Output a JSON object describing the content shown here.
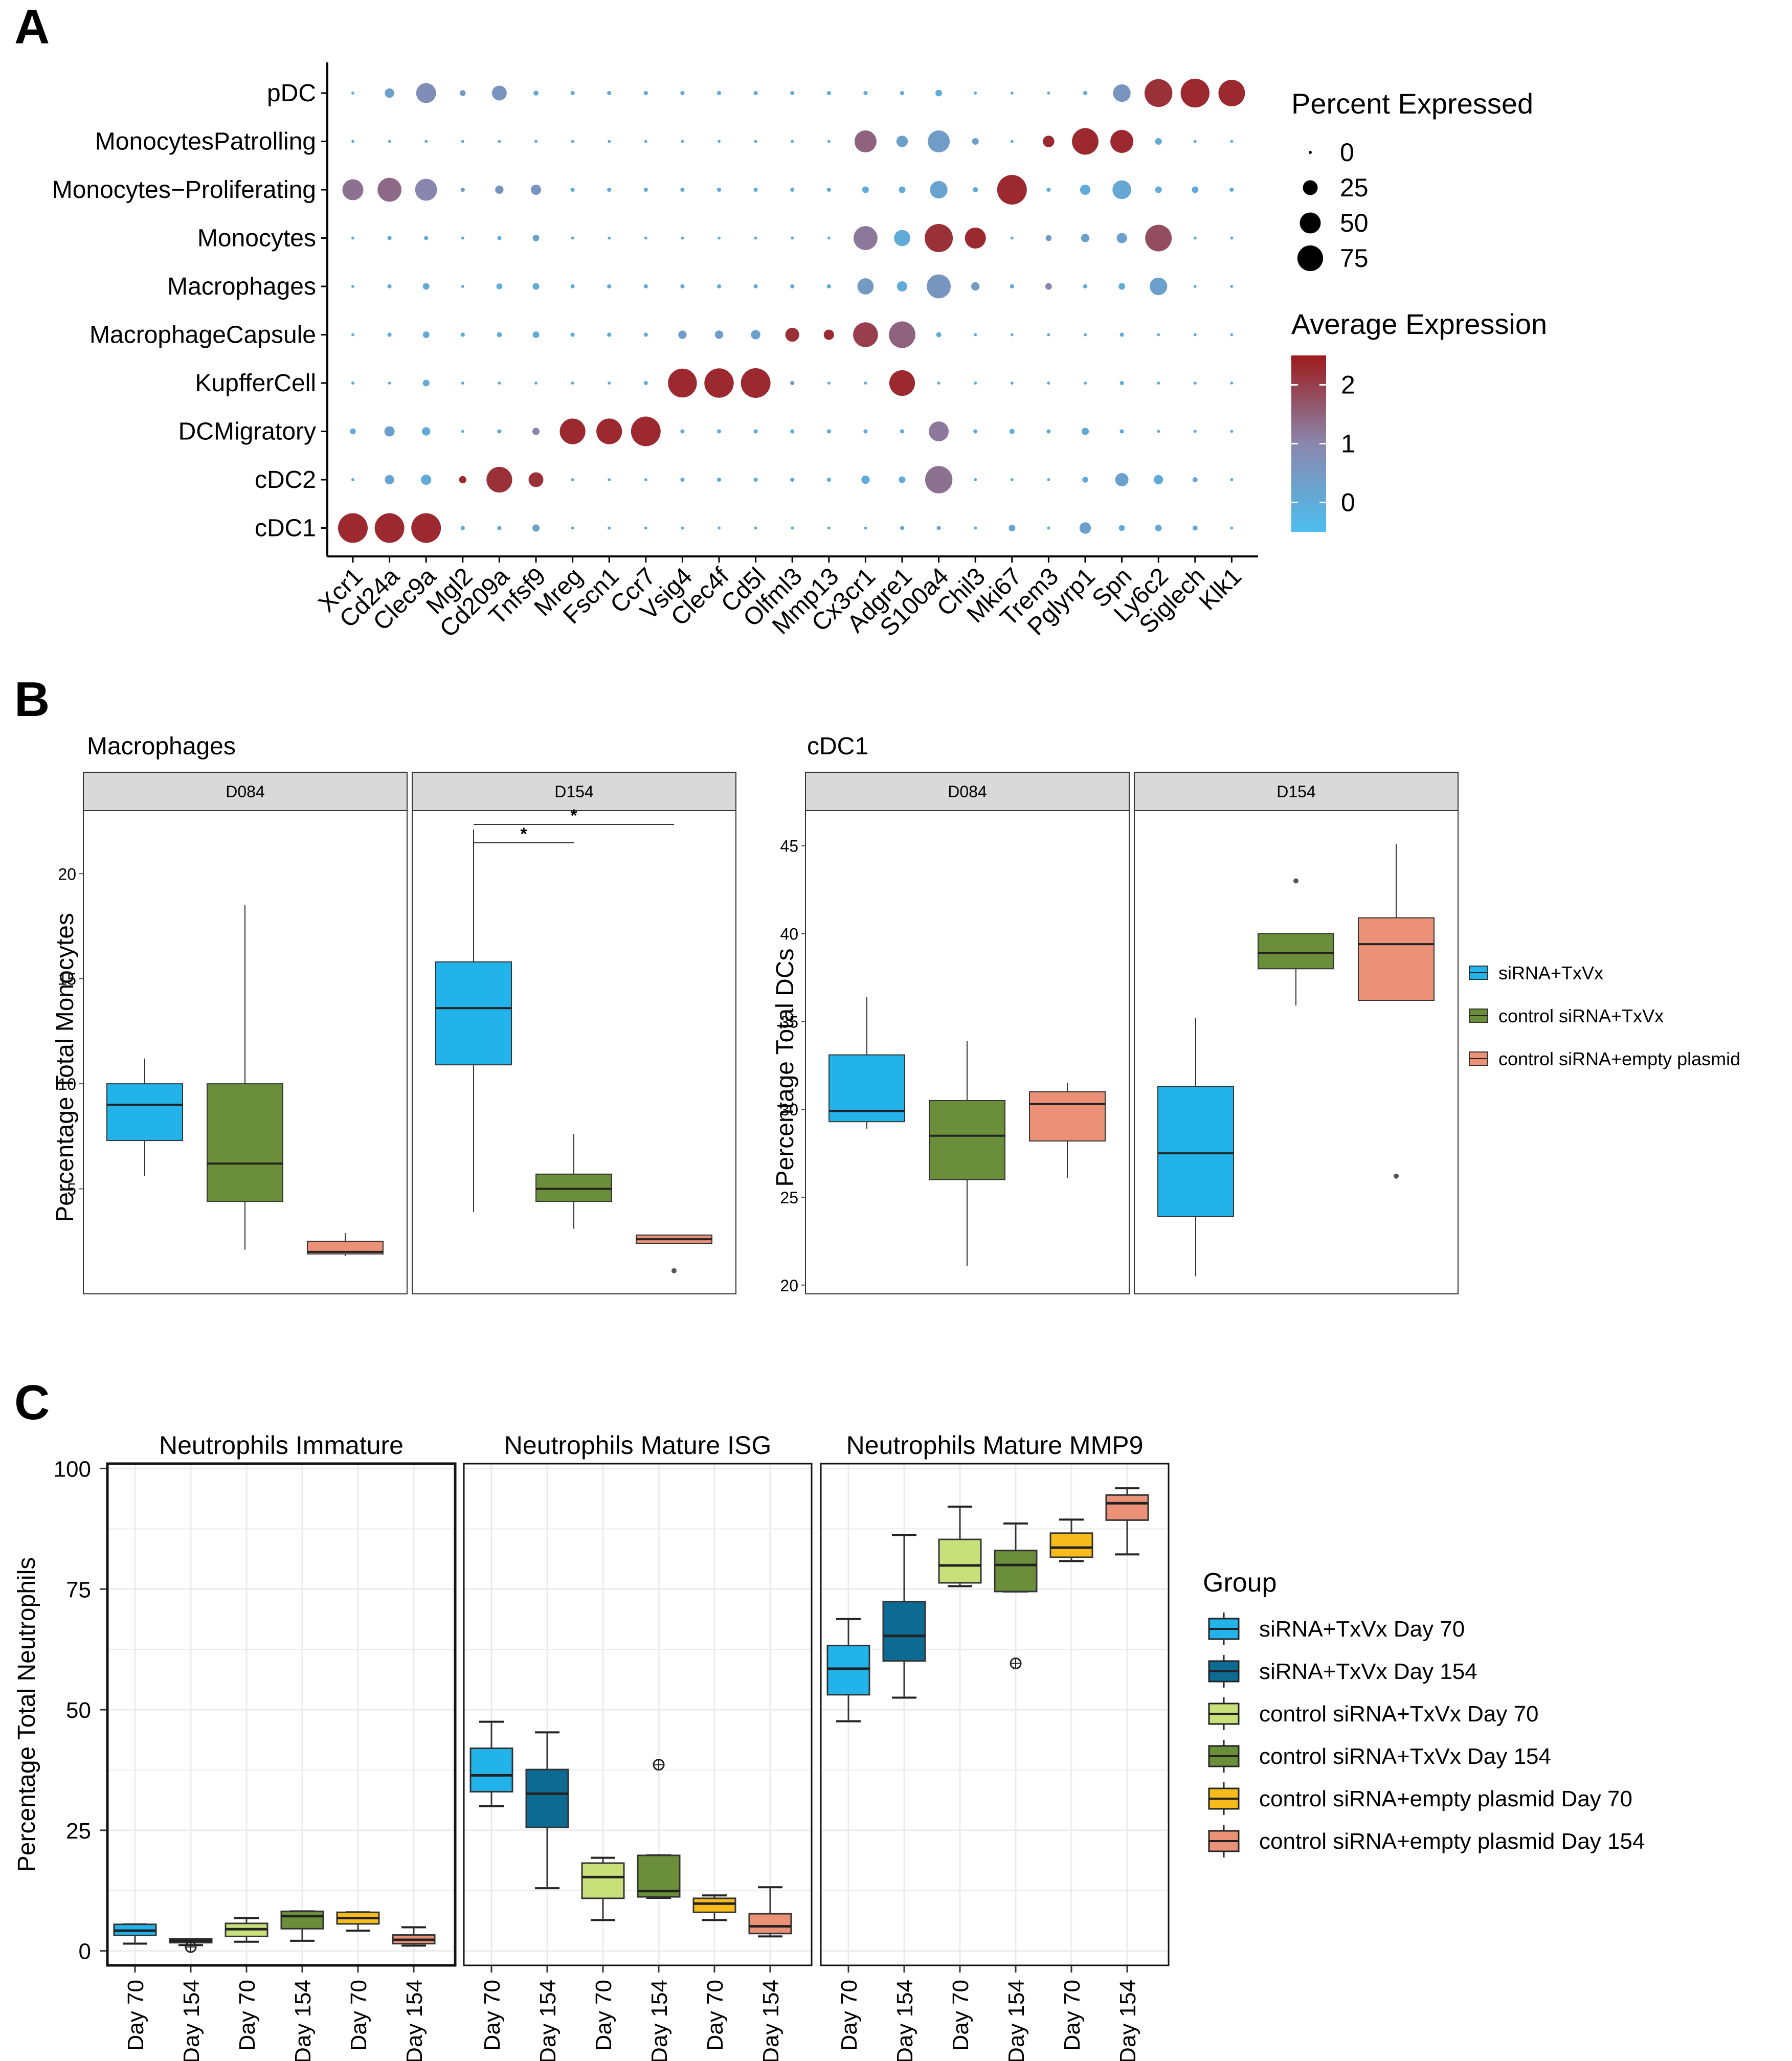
{
  "panel_labels": {
    "a": "A",
    "b": "B",
    "c": "C"
  },
  "colors": {
    "blue": "#22b3ea",
    "dark_blue": "#0d6b93",
    "light_green": "#c8e07a",
    "green": "#6b8e3a",
    "yellow": "#f7bb1b",
    "salmon": "#ea9178",
    "red": "#9e1b1b",
    "grey_strip": "#d9d9d9"
  },
  "chart_data": [
    {
      "id": "A",
      "type": "dotplot",
      "rows": [
        "pDC",
        "MonocytesPatrolling",
        "Monocytes−Proliferating",
        "Monocytes",
        "Macrophages",
        "MacrophageCapsule",
        "KupfferCell",
        "DCMigratory",
        "cDC2",
        "cDC1"
      ],
      "genes": [
        "Xcr1",
        "Cd24a",
        "Clec9a",
        "Mgl2",
        "Cd209a",
        "Tnfsf9",
        "Mreg",
        "Fscn1",
        "Ccr7",
        "Vsig4",
        "Clec4f",
        "Cd5l",
        "Olfml3",
        "Mmp13",
        "Cx3cr1",
        "Adgre1",
        "S100a4",
        "Chil3",
        "Mki67",
        "Trem3",
        "Pglyrp1",
        "Spn",
        "Ly6c2",
        "Siglech",
        "Klk1"
      ],
      "percent": [
        [
          1,
          10,
          45,
          4,
          25,
          3,
          2,
          2,
          2,
          2,
          2,
          2,
          2,
          2,
          2,
          2,
          5,
          1,
          1,
          1,
          2,
          35,
          88,
          95,
          80
        ],
        [
          1,
          1,
          1,
          1,
          1,
          1,
          1,
          1,
          1,
          1,
          1,
          1,
          1,
          1,
          55,
          15,
          55,
          5,
          1,
          15,
          80,
          60,
          5,
          1,
          1
        ],
        [
          50,
          65,
          55,
          2,
          8,
          12,
          2,
          2,
          2,
          2,
          2,
          2,
          2,
          2,
          5,
          5,
          35,
          3,
          100,
          2,
          12,
          40,
          5,
          5,
          2
        ],
        [
          1,
          2,
          2,
          1,
          2,
          5,
          1,
          1,
          1,
          1,
          1,
          1,
          1,
          1,
          65,
          30,
          90,
          50,
          1,
          4,
          8,
          12,
          80,
          1,
          1
        ],
        [
          1,
          2,
          5,
          1,
          4,
          5,
          2,
          2,
          2,
          2,
          2,
          2,
          2,
          2,
          30,
          12,
          65,
          8,
          2,
          5,
          2,
          5,
          35,
          1,
          1
        ],
        [
          1,
          2,
          5,
          2,
          3,
          5,
          2,
          2,
          2,
          8,
          8,
          10,
          22,
          12,
          70,
          80,
          3,
          1,
          1,
          1,
          1,
          2,
          1,
          1,
          1
        ],
        [
          1,
          1,
          5,
          1,
          1,
          1,
          1,
          1,
          2,
          95,
          98,
          100,
          2,
          1,
          1,
          75,
          1,
          1,
          1,
          1,
          1,
          2,
          1,
          1,
          1
        ],
        [
          4,
          12,
          8,
          1,
          2,
          6,
          75,
          75,
          100,
          2,
          2,
          2,
          2,
          2,
          2,
          2,
          45,
          2,
          3,
          2,
          6,
          2,
          1,
          1,
          1
        ],
        [
          1,
          10,
          12,
          6,
          75,
          25,
          1,
          1,
          1,
          2,
          2,
          2,
          2,
          2,
          8,
          5,
          85,
          1,
          1,
          1,
          4,
          20,
          10,
          3,
          1
        ],
        [
          100,
          100,
          100,
          2,
          2,
          6,
          1,
          1,
          1,
          1,
          1,
          1,
          1,
          1,
          1,
          2,
          2,
          1,
          5,
          1,
          15,
          4,
          5,
          3,
          1
        ]
      ],
      "avg_expression": [
        [
          0,
          0.3,
          0.8,
          0.5,
          0.6,
          0,
          0,
          0,
          0,
          0,
          0,
          0,
          0,
          0,
          0,
          0,
          0,
          0,
          0,
          0,
          0,
          0.6,
          2.2,
          2.3,
          2.3
        ],
        [
          0,
          0,
          0,
          0,
          0,
          0,
          0,
          0,
          0,
          0,
          0,
          0,
          0,
          0,
          1.5,
          0.3,
          0.4,
          0.3,
          0,
          2.3,
          2.3,
          2.3,
          0,
          0,
          0
        ],
        [
          1.3,
          1.4,
          1.0,
          0.4,
          0.6,
          0.6,
          0,
          0,
          0,
          0,
          0,
          0,
          0,
          0,
          0,
          0,
          0.2,
          0,
          2.3,
          0,
          0,
          0.1,
          0,
          0,
          0
        ],
        [
          0,
          0,
          0,
          0,
          0,
          0.3,
          0,
          0,
          0,
          0,
          0,
          0,
          0,
          0,
          1.2,
          0,
          2.2,
          2.3,
          0,
          0.5,
          0.3,
          0.3,
          1.8,
          0,
          0
        ],
        [
          0,
          0,
          0,
          0,
          0,
          0,
          0,
          0,
          0,
          0,
          0,
          0,
          0,
          0,
          0.5,
          0,
          0.6,
          0.5,
          0,
          1.0,
          0,
          0,
          0.3,
          0,
          0
        ],
        [
          0,
          0,
          0,
          0,
          0,
          0,
          0,
          0,
          0,
          0.4,
          0.4,
          0.3,
          2.2,
          2.3,
          2.0,
          1.5,
          0,
          0,
          0,
          0,
          0,
          0,
          0,
          0,
          0
        ],
        [
          0,
          0,
          0,
          0,
          0,
          0,
          0,
          0,
          0,
          2.3,
          2.3,
          2.3,
          0.5,
          0,
          0,
          2.3,
          0,
          0,
          0,
          0,
          0,
          0,
          0,
          0,
          0
        ],
        [
          0,
          0.3,
          0,
          0,
          0,
          1.0,
          2.3,
          2.3,
          2.3,
          0,
          0,
          0,
          0,
          0,
          0,
          0,
          1.2,
          0,
          0,
          0,
          0.1,
          0,
          0,
          0,
          0
        ],
        [
          0,
          0.2,
          0,
          2.3,
          2.2,
          2.2,
          0,
          0,
          0,
          0,
          0,
          0,
          0,
          0,
          0,
          0,
          1.3,
          0,
          0,
          0,
          0,
          0.3,
          0,
          0,
          0
        ],
        [
          2.3,
          2.3,
          2.3,
          0,
          0,
          0.3,
          0,
          0,
          0,
          0,
          0,
          0,
          0,
          0,
          0,
          0,
          0,
          0,
          0.2,
          0,
          0.3,
          0,
          0,
          0,
          0
        ]
      ],
      "legend": {
        "size_title": "Percent Expressed",
        "size_breaks": [
          0,
          25,
          50,
          75
        ],
        "size_labels": [
          "0",
          "25",
          "50",
          "75"
        ],
        "color_title": "Average Expression",
        "color_breaks": [
          "2",
          "1",
          "0"
        ],
        "color_range": [
          -0.5,
          2.5
        ]
      }
    },
    {
      "id": "B-macrophages",
      "type": "boxplot",
      "title": "Macrophages",
      "ylabel": "Percentage Total Monocytes",
      "ylim": [
        0,
        23
      ],
      "yticks": [
        5,
        10,
        15,
        20
      ],
      "facets": [
        "D084",
        "D154"
      ],
      "boxes": [
        [
          {
            "group": "siRNA+TxVx",
            "min": 5.6,
            "q1": 7.3,
            "median": 9.0,
            "q3": 10.0,
            "max": 11.2,
            "outliers": []
          },
          {
            "group": "control siRNA+TxVx",
            "min": 2.1,
            "q1": 4.4,
            "median": 6.2,
            "q3": 10.0,
            "max": 18.5,
            "outliers": []
          },
          {
            "group": "control siRNA+empty plasmid",
            "min": 1.8,
            "q1": 1.9,
            "median": 2.0,
            "q3": 2.5,
            "max": 2.9,
            "outliers": []
          }
        ],
        [
          {
            "group": "siRNA+TxVx",
            "min": 3.9,
            "q1": 10.9,
            "median": 13.6,
            "q3": 15.8,
            "max": 22.1,
            "outliers": []
          },
          {
            "group": "control siRNA+TxVx",
            "min": 3.1,
            "q1": 4.4,
            "median": 5.0,
            "q3": 5.7,
            "max": 7.6,
            "outliers": []
          },
          {
            "group": "control siRNA+empty plasmid",
            "min": 2.4,
            "q1": 2.4,
            "median": 2.6,
            "q3": 2.8,
            "max": 2.8,
            "outliers": [
              1.1
            ]
          }
        ]
      ],
      "significance": [
        {
          "facet": 1,
          "from": 0,
          "to": 1,
          "label": "*"
        },
        {
          "facet": 1,
          "from": 0,
          "to": 2,
          "label": "*"
        }
      ]
    },
    {
      "id": "B-cdc1",
      "type": "boxplot",
      "title": "cDC1",
      "ylabel": "Percentage Total DCs",
      "ylim": [
        19.5,
        47
      ],
      "yticks": [
        20,
        25,
        30,
        35,
        40,
        45
      ],
      "facets": [
        "D084",
        "D154"
      ],
      "boxes": [
        [
          {
            "group": "siRNA+TxVx",
            "min": 28.9,
            "q1": 29.3,
            "median": 29.9,
            "q3": 33.1,
            "max": 36.4,
            "outliers": []
          },
          {
            "group": "control siRNA+TxVx",
            "min": 21.1,
            "q1": 26.0,
            "median": 28.5,
            "q3": 30.5,
            "max": 33.9,
            "outliers": []
          },
          {
            "group": "control siRNA+empty plasmid",
            "min": 26.1,
            "q1": 28.2,
            "median": 30.3,
            "q3": 31.0,
            "max": 31.5,
            "outliers": []
          }
        ],
        [
          {
            "group": "siRNA+TxVx",
            "min": 20.5,
            "q1": 23.9,
            "median": 27.5,
            "q3": 31.3,
            "max": 35.2,
            "outliers": []
          },
          {
            "group": "control siRNA+TxVx",
            "min": 35.9,
            "q1": 38.0,
            "median": 38.9,
            "q3": 40.0,
            "max": 40.0,
            "outliers": [
              43.0
            ]
          },
          {
            "group": "control siRNA+empty plasmid",
            "min": 36.2,
            "q1": 36.2,
            "median": 39.4,
            "q3": 40.9,
            "max": 45.1,
            "outliers": [
              26.2
            ]
          }
        ]
      ],
      "legend": [
        "siRNA+TxVx",
        "control siRNA+TxVx",
        "control siRNA+empty plasmid"
      ]
    },
    {
      "id": "C",
      "type": "boxplot",
      "ylabel": "Percentage Total Neutrophils",
      "ylim": [
        -3,
        101
      ],
      "yticks": [
        0,
        25,
        50,
        75,
        100
      ],
      "categories": [
        "Day 70",
        "Day 154",
        "Day 70",
        "Day 154",
        "Day 70",
        "Day 154"
      ],
      "facets": [
        "Neutrophils Immature",
        "Neutrophils Mature ISG",
        "Neutrophils Mature MMP9"
      ],
      "boxes": [
        [
          {
            "min": 1.5,
            "q1": 3.2,
            "median": 4.2,
            "q3": 5.5,
            "max": 5.5,
            "outliers": []
          },
          {
            "min": 1.2,
            "q1": 1.7,
            "median": 2.1,
            "q3": 2.5,
            "max": 2.5,
            "outliers": [
              0.8
            ]
          },
          {
            "min": 1.9,
            "q1": 3.0,
            "median": 4.5,
            "q3": 5.7,
            "max": 6.8,
            "outliers": []
          },
          {
            "min": 2.1,
            "q1": 4.6,
            "median": 7.2,
            "q3": 8.2,
            "max": 8.2,
            "outliers": []
          },
          {
            "min": 4.2,
            "q1": 5.6,
            "median": 6.8,
            "q3": 8.0,
            "max": 8.0,
            "outliers": []
          },
          {
            "min": 1.1,
            "q1": 1.5,
            "median": 2.3,
            "q3": 3.3,
            "max": 4.9,
            "outliers": []
          }
        ],
        [
          {
            "min": 30.0,
            "q1": 33.0,
            "median": 36.4,
            "q3": 42.0,
            "max": 47.5,
            "outliers": []
          },
          {
            "min": 13.0,
            "q1": 25.6,
            "median": 32.6,
            "q3": 37.6,
            "max": 45.3,
            "outliers": []
          },
          {
            "min": 6.4,
            "q1": 10.9,
            "median": 15.3,
            "q3": 18.2,
            "max": 19.3,
            "outliers": []
          },
          {
            "min": 11.0,
            "q1": 11.2,
            "median": 12.4,
            "q3": 19.8,
            "max": 19.8,
            "outliers": [
              38.6
            ]
          },
          {
            "min": 6.4,
            "q1": 8.0,
            "median": 9.8,
            "q3": 10.9,
            "max": 11.5,
            "outliers": []
          },
          {
            "min": 3.0,
            "q1": 3.6,
            "median": 5.1,
            "q3": 7.7,
            "max": 13.2,
            "outliers": []
          }
        ],
        [
          {
            "min": 47.6,
            "q1": 53.1,
            "median": 58.5,
            "q3": 63.3,
            "max": 68.8,
            "outliers": []
          },
          {
            "min": 52.5,
            "q1": 60.1,
            "median": 65.3,
            "q3": 72.4,
            "max": 86.2,
            "outliers": []
          },
          {
            "min": 75.6,
            "q1": 76.3,
            "median": 79.9,
            "q3": 85.3,
            "max": 92.1,
            "outliers": []
          },
          {
            "min": 74.5,
            "q1": 74.5,
            "median": 80.0,
            "q3": 83.0,
            "max": 88.6,
            "outliers": [
              59.6
            ]
          },
          {
            "min": 80.8,
            "q1": 81.6,
            "median": 83.6,
            "q3": 86.6,
            "max": 89.4,
            "outliers": []
          },
          {
            "min": 82.2,
            "q1": 89.3,
            "median": 92.8,
            "q3": 94.5,
            "max": 95.9,
            "outliers": []
          }
        ]
      ],
      "legend_title": "Group",
      "legend": [
        "siRNA+TxVx Day 70",
        "siRNA+TxVx Day 154",
        "control siRNA+TxVx Day 70",
        "control siRNA+TxVx Day 154",
        "control siRNA+empty plasmid Day 70",
        "control siRNA+empty plasmid Day 154"
      ]
    }
  ]
}
